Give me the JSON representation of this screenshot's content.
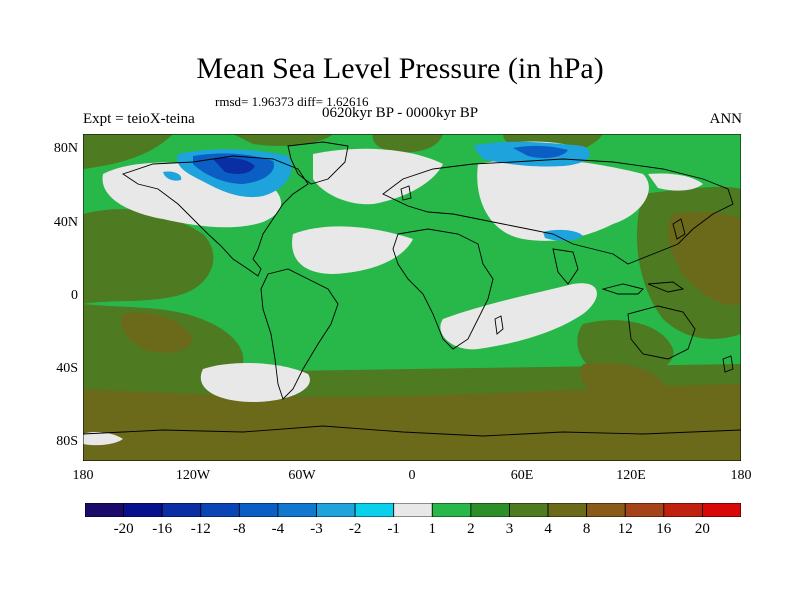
{
  "title": "Mean Sea Level Pressure (in hPa)",
  "stats": "rmsd= 1.96373 diff= 1.62616",
  "period": "0620kyr BP - 0000kyr BP",
  "experiment": "Expt = teioX-teina",
  "season": "ANN",
  "latitude_labels": [
    "80N",
    "40N",
    "0",
    "40S",
    "80S"
  ],
  "longitude_labels": [
    "180",
    "120W",
    "60W",
    "0",
    "60E",
    "120E",
    "180"
  ],
  "colorbar": {
    "labels": [
      "-20",
      "-16",
      "-12",
      "-8",
      "-4",
      "-3",
      "-2",
      "-1",
      "1",
      "2",
      "3",
      "4",
      "8",
      "12",
      "16",
      "20"
    ],
    "colors": [
      "#1c0a6b",
      "#08108c",
      "#0a2ea3",
      "#0a45b5",
      "#0b5fc4",
      "#1277cf",
      "#1ea3dc",
      "#0ad0ec",
      "#e8e8e8",
      "#28b84a",
      "#2e8f2a",
      "#4e7a22",
      "#6a6a1a",
      "#8a5a1a",
      "#a6421a",
      "#c0200e",
      "#d80808"
    ]
  }
}
